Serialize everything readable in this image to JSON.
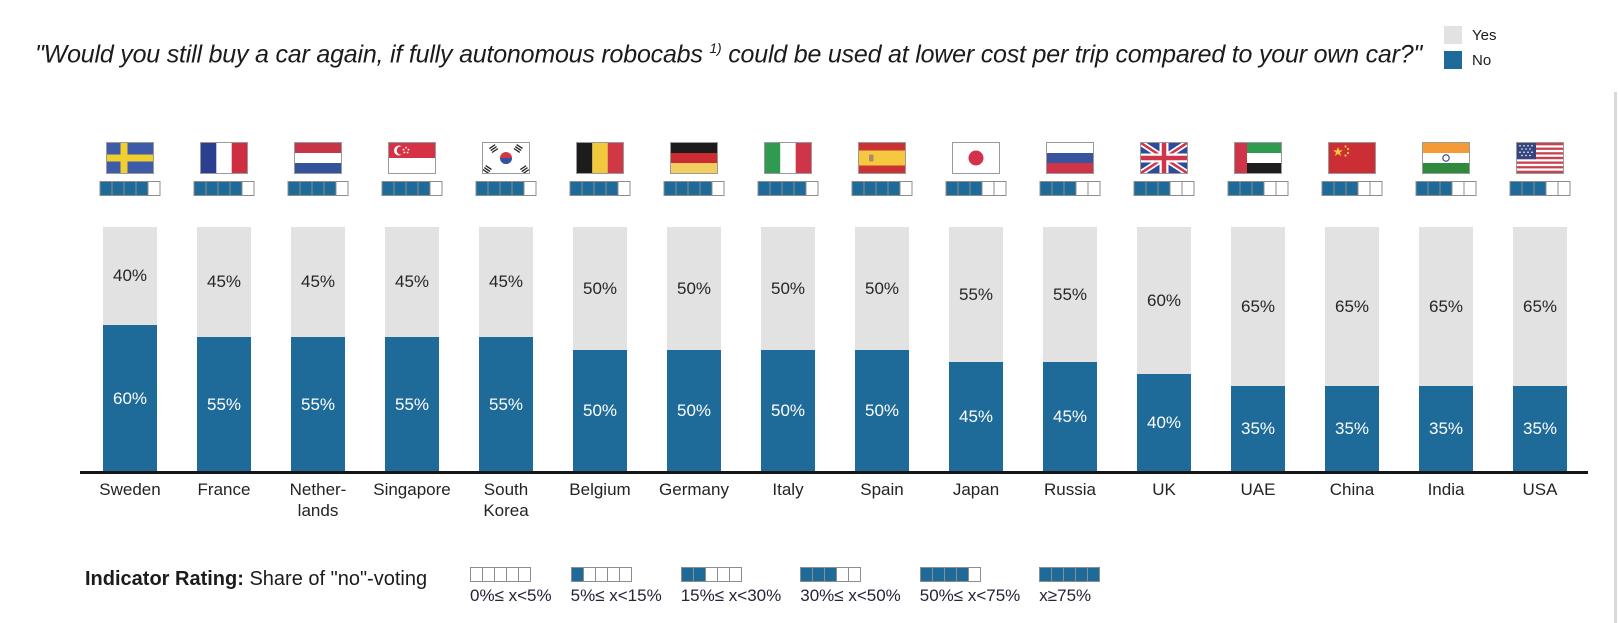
{
  "title": {
    "prefix": "\"Would you still buy a car again, if fully autonomous robocabs ",
    "sup": "1)",
    "suffix": " could be used at lower cost per trip compared to your own car?\""
  },
  "legend": {
    "yes_label": "Yes",
    "no_label": "No",
    "position": "top-right"
  },
  "colors": {
    "no_blue": "#1e6b99",
    "yes_gray": "#e2e2e3",
    "axis_black": "#161616",
    "indicator_border": "#8d8d8d"
  },
  "chart_data": {
    "type": "bar",
    "stacked": true,
    "unit": "%",
    "title": "Would you still buy a car again, if fully autonomous robocabs could be used at lower cost per trip compared to your own car?",
    "categories": [
      "Sweden",
      "France",
      "Netherlands",
      "Singapore",
      "South Korea",
      "Belgium",
      "Germany",
      "Italy",
      "Spain",
      "Japan",
      "Russia",
      "UK",
      "UAE",
      "China",
      "India",
      "USA"
    ],
    "series": [
      {
        "name": "Yes",
        "values": [
          40,
          45,
          45,
          45,
          45,
          50,
          50,
          50,
          50,
          55,
          55,
          60,
          65,
          65,
          65,
          65
        ]
      },
      {
        "name": "No",
        "values": [
          60,
          55,
          55,
          55,
          55,
          50,
          50,
          50,
          50,
          45,
          45,
          40,
          35,
          35,
          35,
          35
        ]
      }
    ],
    "ylim": [
      0,
      100
    ],
    "grid": false,
    "legend_position": "top-right"
  },
  "countries": [
    {
      "flag": "sweden",
      "label_lines": [
        "Sweden"
      ],
      "yes": 40,
      "no": 60,
      "yes_label": "40%",
      "no_label": "60%",
      "rating_filled": 4,
      "rating_total": 5
    },
    {
      "flag": "france",
      "label_lines": [
        "France"
      ],
      "yes": 45,
      "no": 55,
      "yes_label": "45%",
      "no_label": "55%",
      "rating_filled": 4,
      "rating_total": 5
    },
    {
      "flag": "netherlands",
      "label_lines": [
        "Nether-",
        "lands"
      ],
      "yes": 45,
      "no": 55,
      "yes_label": "45%",
      "no_label": "55%",
      "rating_filled": 4,
      "rating_total": 5
    },
    {
      "flag": "singapore",
      "label_lines": [
        "Singapore"
      ],
      "yes": 45,
      "no": 55,
      "yes_label": "45%",
      "no_label": "55%",
      "rating_filled": 4,
      "rating_total": 5
    },
    {
      "flag": "south-korea",
      "label_lines": [
        "South",
        "Korea"
      ],
      "yes": 45,
      "no": 55,
      "yes_label": "45%",
      "no_label": "55%",
      "rating_filled": 4,
      "rating_total": 5
    },
    {
      "flag": "belgium",
      "label_lines": [
        "Belgium"
      ],
      "yes": 50,
      "no": 50,
      "yes_label": "50%",
      "no_label": "50%",
      "rating_filled": 4,
      "rating_total": 5
    },
    {
      "flag": "germany",
      "label_lines": [
        "Germany"
      ],
      "yes": 50,
      "no": 50,
      "yes_label": "50%",
      "no_label": "50%",
      "rating_filled": 4,
      "rating_total": 5
    },
    {
      "flag": "italy",
      "label_lines": [
        "Italy"
      ],
      "yes": 50,
      "no": 50,
      "yes_label": "50%",
      "no_label": "50%",
      "rating_filled": 4,
      "rating_total": 5
    },
    {
      "flag": "spain",
      "label_lines": [
        "Spain"
      ],
      "yes": 50,
      "no": 50,
      "yes_label": "50%",
      "no_label": "50%",
      "rating_filled": 4,
      "rating_total": 5
    },
    {
      "flag": "japan",
      "label_lines": [
        "Japan"
      ],
      "yes": 55,
      "no": 45,
      "yes_label": "55%",
      "no_label": "45%",
      "rating_filled": 3,
      "rating_total": 5
    },
    {
      "flag": "russia",
      "label_lines": [
        "Russia"
      ],
      "yes": 55,
      "no": 45,
      "yes_label": "55%",
      "no_label": "45%",
      "rating_filled": 3,
      "rating_total": 5
    },
    {
      "flag": "uk",
      "label_lines": [
        "UK"
      ],
      "yes": 60,
      "no": 40,
      "yes_label": "60%",
      "no_label": "40%",
      "rating_filled": 3,
      "rating_total": 5
    },
    {
      "flag": "uae",
      "label_lines": [
        "UAE"
      ],
      "yes": 65,
      "no": 35,
      "yes_label": "65%",
      "no_label": "35%",
      "rating_filled": 3,
      "rating_total": 5
    },
    {
      "flag": "china",
      "label_lines": [
        "China"
      ],
      "yes": 65,
      "no": 35,
      "yes_label": "65%",
      "no_label": "35%",
      "rating_filled": 3,
      "rating_total": 5
    },
    {
      "flag": "india",
      "label_lines": [
        "India"
      ],
      "yes": 65,
      "no": 35,
      "yes_label": "65%",
      "no_label": "35%",
      "rating_filled": 3,
      "rating_total": 5
    },
    {
      "flag": "usa",
      "label_lines": [
        "USA"
      ],
      "yes": 65,
      "no": 35,
      "yes_label": "65%",
      "no_label": "35%",
      "rating_filled": 3,
      "rating_total": 5
    }
  ],
  "indicator_legend": {
    "heading_bold": "Indicator Rating:",
    "heading_rest": " Share of \"no\"-voting",
    "bins": [
      {
        "filled": 0,
        "label": "0%≤ x<5%"
      },
      {
        "filled": 1,
        "label": "5%≤ x<15%"
      },
      {
        "filled": 2,
        "label": "15%≤ x<30%"
      },
      {
        "filled": 3,
        "label": "30%≤ x<50%"
      },
      {
        "filled": 4,
        "label": "50%≤ x<75%"
      },
      {
        "filled": 5,
        "label": "x≥75%"
      }
    ]
  }
}
